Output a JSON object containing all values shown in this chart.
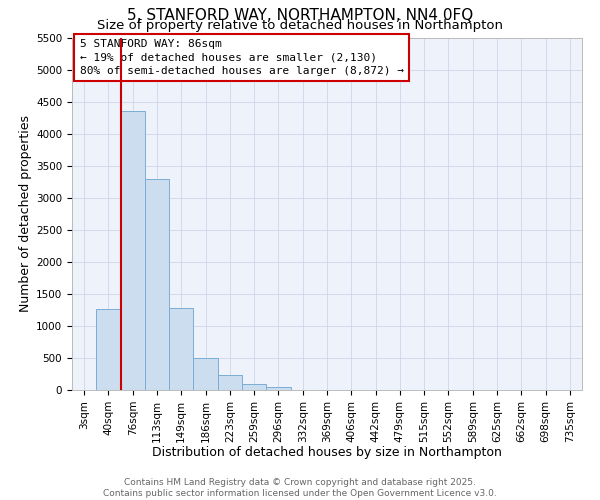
{
  "title": "5, STANFORD WAY, NORTHAMPTON, NN4 0FQ",
  "subtitle": "Size of property relative to detached houses in Northampton",
  "xlabel": "Distribution of detached houses by size in Northampton",
  "ylabel": "Number of detached properties",
  "bar_color": "#ccddf0",
  "bar_edge_color": "#7aaed6",
  "bg_color": "#eef2fb",
  "grid_color": "#c8d0e8",
  "annotation_box_color": "#cc0000",
  "vline_color": "#cc0000",
  "categories": [
    "3sqm",
    "40sqm",
    "76sqm",
    "113sqm",
    "149sqm",
    "186sqm",
    "223sqm",
    "259sqm",
    "296sqm",
    "332sqm",
    "369sqm",
    "406sqm",
    "442sqm",
    "479sqm",
    "515sqm",
    "552sqm",
    "589sqm",
    "625sqm",
    "662sqm",
    "698sqm",
    "735sqm"
  ],
  "bar_heights": [
    0,
    1270,
    4350,
    3300,
    1280,
    500,
    230,
    90,
    40,
    0,
    0,
    0,
    0,
    0,
    0,
    0,
    0,
    0,
    0,
    0,
    0
  ],
  "vline_x_idx": 2,
  "ylim": [
    0,
    5500
  ],
  "yticks": [
    0,
    500,
    1000,
    1500,
    2000,
    2500,
    3000,
    3500,
    4000,
    4500,
    5000,
    5500
  ],
  "annotation_title": "5 STANFORD WAY: 86sqm",
  "annotation_line1": "← 19% of detached houses are smaller (2,130)",
  "annotation_line2": "80% of semi-detached houses are larger (8,872) →",
  "footer1": "Contains HM Land Registry data © Crown copyright and database right 2025.",
  "footer2": "Contains public sector information licensed under the Open Government Licence v3.0.",
  "title_fontsize": 11,
  "subtitle_fontsize": 9.5,
  "axis_label_fontsize": 9,
  "tick_fontsize": 7.5,
  "annotation_fontsize": 8,
  "footer_fontsize": 6.5
}
